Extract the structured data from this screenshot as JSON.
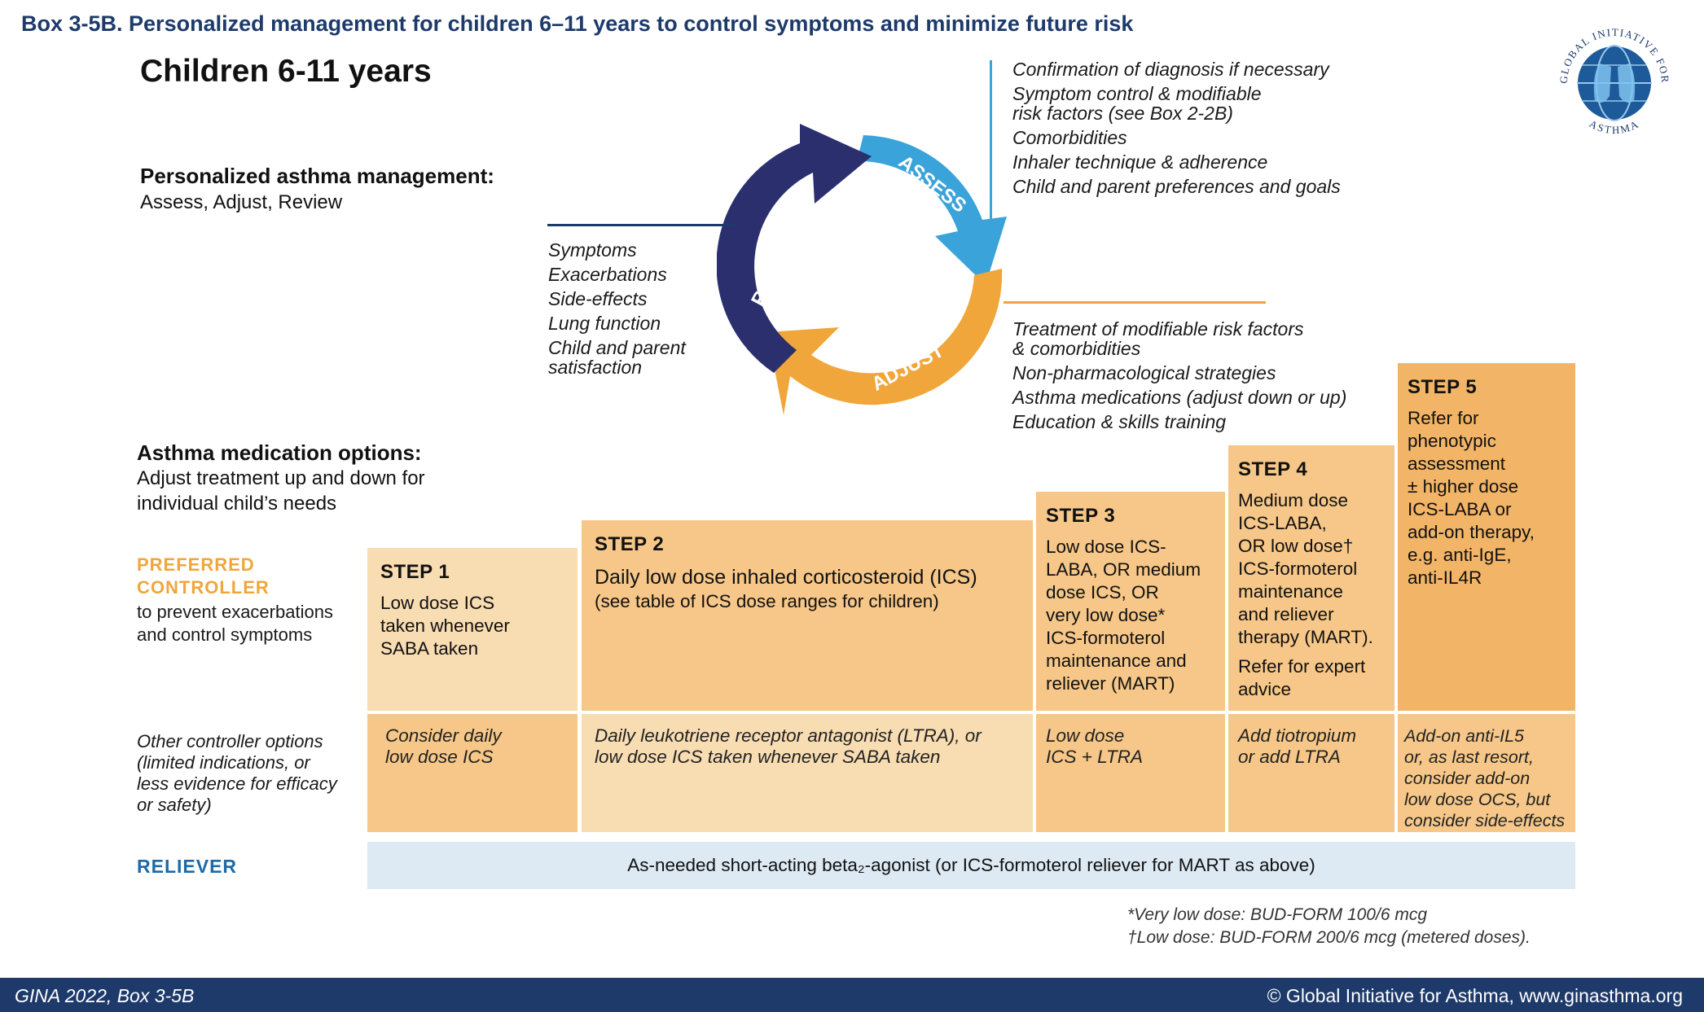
{
  "box_title": "Box 3-5B. Personalized management for children 6–11 years to control symptoms and minimize future risk",
  "main_title": "Children 6-11 years",
  "logo": {
    "top_text": "GLOBAL INITIATIVE FOR",
    "bottom_text": "ASTHMA"
  },
  "management": {
    "heading": "Personalized asthma management:",
    "sub": "Assess, Adjust, Review"
  },
  "cycle": {
    "assess": "ASSESS",
    "adjust": "ADJUST",
    "review": "REVIEW"
  },
  "assess_items": [
    "Confirmation of diagnosis if necessary",
    "Symptom control & modifiable",
    "risk factors (see Box 2-2B)",
    "Comorbidities",
    "Inhaler technique & adherence",
    "Child and parent preferences and goals"
  ],
  "review_items": [
    "Symptoms",
    "Exacerbations",
    "Side-effects",
    "Lung function",
    "Child and parent",
    "satisfaction"
  ],
  "adjust_items": [
    "Treatment of modifiable risk factors",
    "& comorbidities",
    "Non-pharmacological strategies",
    "Asthma medications (adjust down or up)",
    "Education & skills training"
  ],
  "medication": {
    "heading": "Asthma medication options:",
    "sub1": "Adjust treatment up and down for",
    "sub2": "individual child’s needs"
  },
  "preferred": {
    "line1": "PREFERRED",
    "line2": "CONTROLLER",
    "sub1": "to prevent exacerbations",
    "sub2": "and control symptoms"
  },
  "other_label": [
    "Other controller options",
    "(limited indications, or",
    "less evidence for efficacy",
    "or safety)"
  ],
  "steps": [
    {
      "label": "STEP 1",
      "lines": [
        "Low dose ICS",
        "taken whenever",
        "SABA taken"
      ],
      "other": [
        "Consider daily",
        "low dose ICS"
      ]
    },
    {
      "label": "STEP 2",
      "lines": [
        "Daily low dose inhaled corticosteroid (ICS)",
        "(see table of ICS dose ranges for children)"
      ],
      "other": [
        "Daily leukotriene receptor antagonist (LTRA), or",
        "low dose ICS taken whenever SABA taken"
      ]
    },
    {
      "label": "STEP 3",
      "lines": [
        "Low dose ICS-",
        "LABA, OR medium",
        "dose ICS, OR",
        "very low dose*",
        "ICS-formoterol",
        "maintenance and",
        "reliever (MART)"
      ],
      "other": [
        "Low dose",
        "ICS + LTRA"
      ]
    },
    {
      "label": "STEP 4",
      "lines": [
        "Medium dose",
        "ICS-LABA,",
        "OR low dose†",
        "ICS-formoterol",
        "maintenance",
        "and reliever",
        "therapy (MART)."
      ],
      "extra": [
        "Refer for expert",
        "advice"
      ],
      "other": [
        "Add tiotropium",
        "or add LTRA"
      ]
    },
    {
      "label": "STEP 5",
      "lines": [
        "Refer for",
        "phenotypic",
        "assessment",
        "± higher dose",
        "ICS-LABA or",
        "add-on therapy,",
        "e.g. anti-IgE,",
        "anti-IL4R"
      ],
      "other": [
        "Add-on anti-IL5",
        "or, as last resort,",
        "consider add-on",
        "low dose OCS, but",
        "consider side-effects"
      ]
    }
  ],
  "reliever": {
    "label": "RELIEVER",
    "text": "As-needed short-acting beta₂-agonist (or ICS-formoterol reliever for MART as above)"
  },
  "footnotes": [
    "*Very low dose: BUD-FORM 100/6 mcg",
    "†Low dose: BUD-FORM 200/6 mcg (metered doses)."
  ],
  "footer": {
    "left": "GINA 2022, Box 3-5B",
    "right": "© Global Initiative for Asthma, www.ginasthma.org"
  },
  "colors": {
    "navy": "#1d3a6b",
    "assess_blue": "#3aa3d9",
    "adjust_orange": "#f0a63a",
    "step_light": "#f8dcb2",
    "step_mid": "#f6c788",
    "step_dark": "#f2b466",
    "reliever_bg": "#dde9f3"
  }
}
